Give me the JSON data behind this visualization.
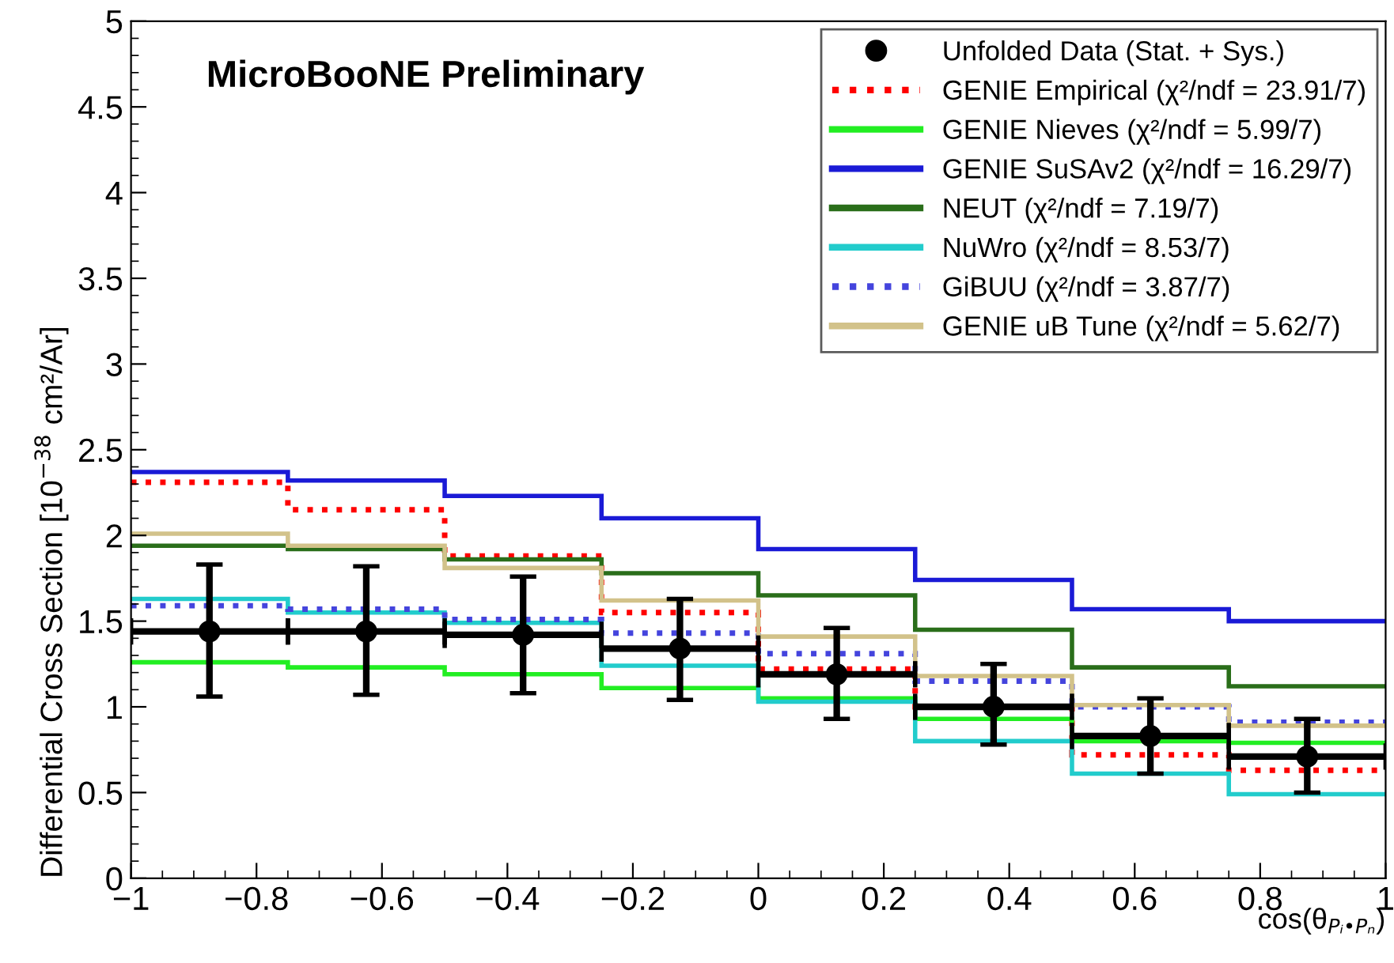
{
  "chart_data": {
    "type": "histogram",
    "title": "MicroBooNE Preliminary",
    "xlabel": "cos(θ$_{Pᵢ•Pₙ}$)",
    "bins": [
      -1,
      -0.75,
      -0.5,
      -0.25,
      0,
      0.25,
      0.5,
      0.75,
      1
    ],
    "ylabel": "Differential Cross Section [10$^{−38}$ cm²/Ar]",
    "xlim": [
      -1,
      1
    ],
    "xticks": [
      {
        "value": -1,
        "label": "−1"
      },
      {
        "value": -0.8,
        "label": "−0.8"
      },
      {
        "value": -0.6,
        "label": "−0.6"
      },
      {
        "value": -0.4,
        "label": "−0.4"
      },
      {
        "value": -0.2,
        "label": "−0.2"
      },
      0,
      0.2,
      0.4,
      0.6,
      0.8,
      1
    ],
    "ylim": [
      0,
      5
    ],
    "yticks": [
      0,
      0.5,
      1,
      1.5,
      2,
      2.5,
      3,
      3.5,
      4,
      4.5,
      5
    ],
    "grid": false,
    "legend": "top right",
    "series": [
      {
        "type": "scatter",
        "name": "Unfolded Data (Stat. + Sys.)",
        "color": "#000000",
        "marker": "circle",
        "x": [
          -0.875,
          -0.625,
          -0.375,
          -0.125,
          0.125,
          0.375,
          0.625,
          0.875
        ],
        "values": [
          1.44,
          1.44,
          1.42,
          1.34,
          1.19,
          1.0,
          0.83,
          0.71
        ],
        "errors": [
          [
            1.06,
            1.83
          ],
          [
            1.07,
            1.82
          ],
          [
            1.08,
            1.76
          ],
          [
            1.04,
            1.63
          ],
          [
            0.93,
            1.46
          ],
          [
            0.78,
            1.25
          ],
          [
            0.61,
            1.05
          ],
          [
            0.5,
            0.93
          ]
        ],
        "xerrors": [
          0.125,
          0.125,
          0.125,
          0.125,
          0.125,
          0.125,
          0.125,
          0.125
        ]
      },
      {
        "name": "GENIE Empirical (χ²/ndf = 23.91/7)",
        "color": "#ff0000",
        "line_style": "dotted",
        "values": [
          2.31,
          2.15,
          1.88,
          1.55,
          1.22,
          1.0,
          0.72,
          0.63
        ]
      },
      {
        "name": "GENIE Nieves (χ²/ndf = 5.99/7)",
        "color": "#22ee22",
        "line_style": "solid",
        "values": [
          1.26,
          1.23,
          1.19,
          1.11,
          1.05,
          0.93,
          0.8,
          0.79
        ]
      },
      {
        "name": "GENIE SuSAv2 (χ²/ndf = 16.29/7)",
        "color": "#1a1ad6",
        "line_style": "solid",
        "values": [
          2.37,
          2.32,
          2.23,
          2.1,
          1.92,
          1.74,
          1.57,
          1.5
        ]
      },
      {
        "name": "NEUT (χ²/ndf = 7.19/7)",
        "color": "#2a6e1a",
        "line_style": "solid",
        "values": [
          1.94,
          1.92,
          1.86,
          1.78,
          1.65,
          1.45,
          1.23,
          1.12
        ]
      },
      {
        "name": "NuWro (χ²/ndf = 8.53/7)",
        "color": "#22cccc",
        "line_style": "solid",
        "values": [
          1.63,
          1.55,
          1.49,
          1.24,
          1.03,
          0.8,
          0.61,
          0.49
        ]
      },
      {
        "name": "GiBUU (χ²/ndf = 3.87/7)",
        "color": "#4444dd",
        "line_style": "dotted",
        "values": [
          1.59,
          1.57,
          1.51,
          1.43,
          1.31,
          1.15,
          1.0,
          0.91
        ]
      },
      {
        "name": "GENIE uB Tune (χ²/ndf = 5.62/7)",
        "color": "#d2c28a",
        "line_style": "solid",
        "values": [
          2.01,
          1.94,
          1.81,
          1.62,
          1.41,
          1.18,
          1.01,
          0.89
        ]
      }
    ]
  }
}
